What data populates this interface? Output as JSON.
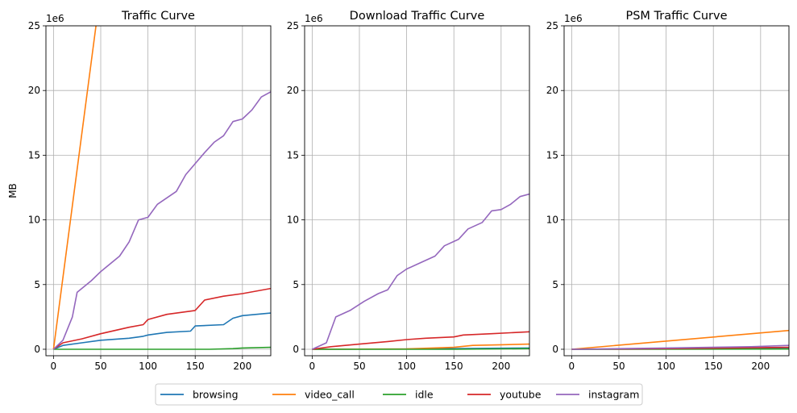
{
  "chart_data": [
    {
      "type": "line",
      "title": "Traffic Curve",
      "xlabel": "",
      "ylabel": "MB",
      "y_offset_text": "1e6",
      "xlim": [
        -8,
        230
      ],
      "ylim": [
        -0.5,
        25
      ],
      "xticks": [
        0,
        50,
        100,
        150,
        200
      ],
      "yticks": [
        0,
        5,
        10,
        15,
        20,
        25
      ],
      "grid": true,
      "series": [
        {
          "name": "browsing",
          "color": "#1f77b4",
          "x": [
            0,
            10,
            30,
            50,
            80,
            95,
            100,
            120,
            145,
            150,
            180,
            190,
            200,
            230
          ],
          "y": [
            0,
            0.3,
            0.5,
            0.7,
            0.85,
            1.0,
            1.1,
            1.3,
            1.4,
            1.8,
            1.9,
            2.4,
            2.6,
            2.8
          ]
        },
        {
          "name": "video_call",
          "color": "#ff7f0e",
          "x": [
            0,
            45
          ],
          "y": [
            0,
            25
          ]
        },
        {
          "name": "idle",
          "color": "#2ca02c",
          "x": [
            0,
            25,
            100,
            165,
            190,
            200,
            230
          ],
          "y": [
            0,
            0,
            0,
            0,
            0.05,
            0.1,
            0.15
          ]
        },
        {
          "name": "youtube",
          "color": "#d62728",
          "x": [
            0,
            10,
            30,
            50,
            80,
            95,
            100,
            120,
            150,
            160,
            180,
            200,
            230
          ],
          "y": [
            0,
            0.5,
            0.8,
            1.2,
            1.7,
            1.9,
            2.3,
            2.7,
            3.0,
            3.8,
            4.1,
            4.3,
            4.7
          ]
        },
        {
          "name": "instagram",
          "color": "#9467bd",
          "x": [
            0,
            10,
            20,
            25,
            40,
            50,
            70,
            80,
            90,
            100,
            110,
            130,
            140,
            160,
            170,
            180,
            190,
            200,
            210,
            220,
            230
          ],
          "y": [
            0,
            0.7,
            2.5,
            4.4,
            5.3,
            6.0,
            7.2,
            8.3,
            10.0,
            10.2,
            11.2,
            12.2,
            13.5,
            15.2,
            16.0,
            16.5,
            17.6,
            17.8,
            18.5,
            19.5,
            19.9
          ]
        }
      ]
    },
    {
      "type": "line",
      "title": "Download Traffic Curve",
      "xlabel": "",
      "ylabel": "",
      "y_offset_text": "1e6",
      "xlim": [
        -8,
        230
      ],
      "ylim": [
        -0.5,
        25
      ],
      "xticks": [
        0,
        50,
        100,
        150,
        200
      ],
      "yticks": [
        0,
        5,
        10,
        15,
        20,
        25
      ],
      "grid": true,
      "series": [
        {
          "name": "browsing",
          "color": "#1f77b4",
          "x": [
            0,
            100,
            150,
            200,
            230
          ],
          "y": [
            0,
            0.02,
            0.05,
            0.08,
            0.1
          ]
        },
        {
          "name": "video_call",
          "color": "#ff7f0e",
          "x": [
            0,
            100,
            150,
            170,
            200,
            230
          ],
          "y": [
            0,
            0.03,
            0.15,
            0.3,
            0.35,
            0.4
          ]
        },
        {
          "name": "idle",
          "color": "#2ca02c",
          "x": [
            0,
            150,
            230
          ],
          "y": [
            0,
            0,
            0.05
          ]
        },
        {
          "name": "youtube",
          "color": "#d62728",
          "x": [
            0,
            20,
            50,
            80,
            100,
            120,
            150,
            160,
            190,
            230
          ],
          "y": [
            0,
            0.2,
            0.4,
            0.6,
            0.75,
            0.85,
            0.95,
            1.1,
            1.2,
            1.35
          ]
        },
        {
          "name": "instagram",
          "color": "#9467bd",
          "x": [
            0,
            15,
            25,
            40,
            55,
            70,
            80,
            90,
            100,
            115,
            130,
            140,
            155,
            165,
            180,
            190,
            200,
            210,
            220,
            230
          ],
          "y": [
            0,
            0.5,
            2.5,
            3.0,
            3.7,
            4.3,
            4.6,
            5.7,
            6.2,
            6.7,
            7.2,
            8.0,
            8.5,
            9.3,
            9.8,
            10.7,
            10.8,
            11.2,
            11.8,
            12.0
          ]
        }
      ]
    },
    {
      "type": "line",
      "title": "PSM Traffic Curve",
      "xlabel": "",
      "ylabel": "",
      "y_offset_text": "1e6",
      "xlim": [
        -8,
        230
      ],
      "ylim": [
        -0.5,
        25
      ],
      "xticks": [
        0,
        50,
        100,
        150,
        200
      ],
      "yticks": [
        0,
        5,
        10,
        15,
        20,
        25
      ],
      "grid": true,
      "series": [
        {
          "name": "browsing",
          "color": "#1f77b4",
          "x": [
            0,
            100,
            230
          ],
          "y": [
            0,
            0.02,
            0.05
          ]
        },
        {
          "name": "video_call",
          "color": "#ff7f0e",
          "x": [
            0,
            230
          ],
          "y": [
            0,
            1.45
          ]
        },
        {
          "name": "idle",
          "color": "#2ca02c",
          "x": [
            0,
            230
          ],
          "y": [
            0,
            0.02
          ]
        },
        {
          "name": "youtube",
          "color": "#d62728",
          "x": [
            0,
            100,
            230
          ],
          "y": [
            0,
            0.05,
            0.15
          ]
        },
        {
          "name": "instagram",
          "color": "#9467bd",
          "x": [
            0,
            100,
            190,
            230
          ],
          "y": [
            0,
            0.1,
            0.2,
            0.3
          ]
        }
      ]
    }
  ],
  "legend": {
    "placement": "bottom-center",
    "entries": [
      {
        "name": "browsing",
        "color": "#1f77b4"
      },
      {
        "name": "video_call",
        "color": "#ff7f0e"
      },
      {
        "name": "idle",
        "color": "#2ca02c"
      },
      {
        "name": "youtube",
        "color": "#d62728"
      },
      {
        "name": "instagram",
        "color": "#9467bd"
      }
    ]
  }
}
